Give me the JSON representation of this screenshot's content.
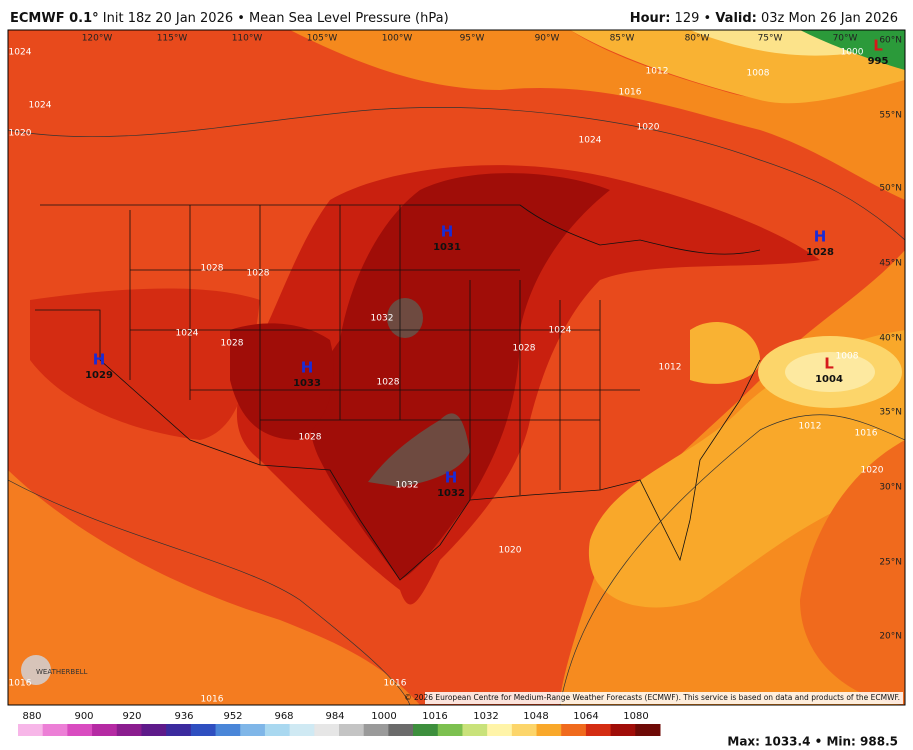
{
  "header": {
    "model": "ECMWF 0.1°",
    "description": "Init 18z 20 Jan 2026 • Mean Sea Level Pressure (hPa)",
    "hour_label": "Hour:",
    "hour": "129",
    "separator": "•",
    "valid_label": "Valid:",
    "valid": "03z Mon 26 Jan 2026"
  },
  "map": {
    "longitudes": [
      "120°W",
      "115°W",
      "110°W",
      "105°W",
      "100°W",
      "95°W",
      "90°W",
      "85°W",
      "80°W",
      "75°W",
      "70°W"
    ],
    "latitudes": [
      "60°N",
      "55°N",
      "50°N",
      "45°N",
      "40°N",
      "35°N",
      "30°N",
      "25°N",
      "20°N"
    ],
    "centers": [
      {
        "symbol": "H",
        "value": "1031"
      },
      {
        "symbol": "H",
        "value": "1028"
      },
      {
        "symbol": "H",
        "value": "1029"
      },
      {
        "symbol": "H",
        "value": "1033"
      },
      {
        "symbol": "H",
        "value": "1032"
      },
      {
        "symbol": "L",
        "value": "1004"
      },
      {
        "symbol": "L",
        "value": "995"
      }
    ],
    "contour_labels": [
      "1024",
      "1024",
      "1020",
      "1028",
      "1028",
      "1024",
      "1028",
      "1032",
      "1028",
      "1028",
      "1032",
      "1028",
      "1024",
      "1024",
      "1020",
      "1016",
      "1012",
      "1008",
      "1012",
      "1008",
      "1012",
      "1016",
      "1020",
      "1020",
      "1016",
      "1016",
      "1016",
      "1000"
    ],
    "logo": "WEATHERBELL",
    "copyright": "© 2026 European Centre for Medium-Range Weather Forecasts (ECMWF). This service is based on data and products of the ECMWF."
  },
  "colorbar": {
    "ticks": [
      880,
      900,
      920,
      936,
      952,
      968,
      984,
      1000,
      1016,
      1032,
      1048,
      1064,
      1080
    ]
  },
  "footer": {
    "stats": "Max: 1033.4 • Min: 988.5"
  }
}
